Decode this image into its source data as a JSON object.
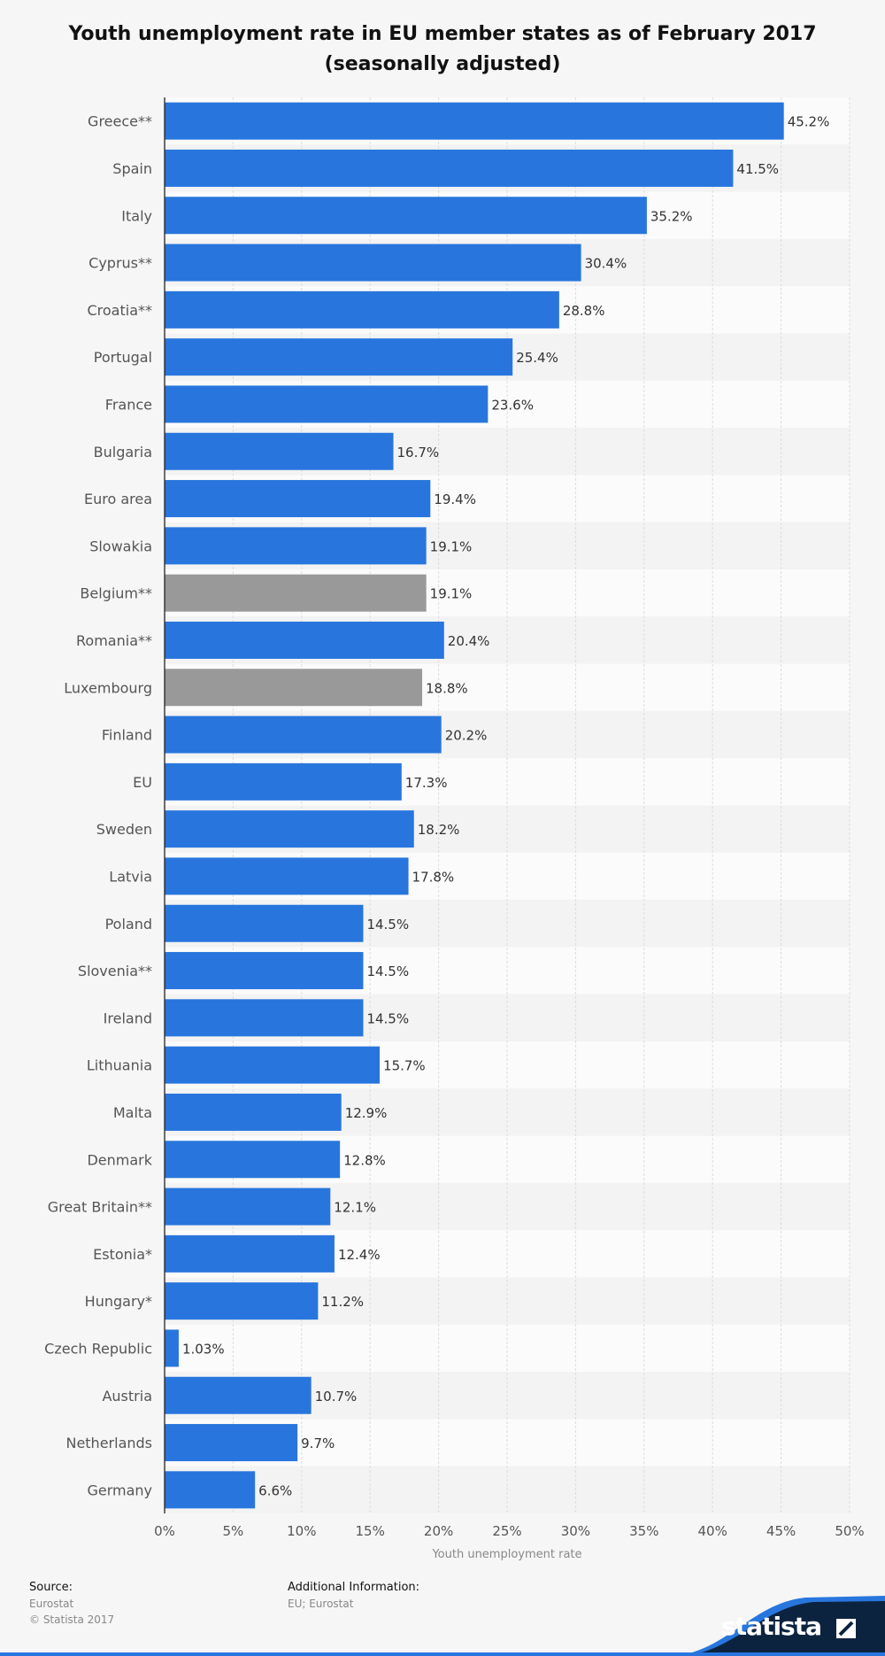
{
  "title": {
    "line1": "Youth unemployment rate in EU member states as of February 2017",
    "line2": "(seasonally adjusted)"
  },
  "colors": {
    "bar_primary": "#2876dd",
    "bar_highlight": "#999999",
    "band_light": "#fbfbfb",
    "band_dark": "#f3f3f3"
  },
  "chart_data": {
    "type": "bar",
    "orientation": "horizontal",
    "categories": [
      "Greece**",
      "Spain",
      "Italy",
      "Cyprus**",
      "Croatia**",
      "Portugal",
      "France",
      "Bulgaria",
      "Euro area",
      "Slowakia",
      "Belgium**",
      "Romania**",
      "Luxembourg",
      "Finland",
      "EU",
      "Sweden",
      "Latvia",
      "Poland",
      "Slovenia**",
      "Ireland",
      "Lithuania",
      "Malta",
      "Denmark",
      "Great Britain**",
      "Estonia*",
      "Hungary*",
      "Czech Republic",
      "Austria",
      "Netherlands",
      "Germany"
    ],
    "values": [
      45.2,
      41.5,
      35.2,
      30.4,
      28.8,
      25.4,
      23.6,
      16.7,
      19.4,
      19.1,
      19.1,
      20.4,
      18.8,
      20.2,
      17.3,
      18.2,
      17.8,
      14.5,
      14.5,
      14.5,
      15.7,
      12.9,
      12.8,
      12.1,
      12.4,
      11.2,
      1.03,
      10.7,
      9.7,
      6.6
    ],
    "value_labels": [
      "45.2%",
      "41.5%",
      "35.2%",
      "30.4%",
      "28.8%",
      "25.4%",
      "23.6%",
      "16.7%",
      "19.4%",
      "19.1%",
      "19.1%",
      "20.4%",
      "18.8%",
      "20.2%",
      "17.3%",
      "18.2%",
      "17.8%",
      "14.5%",
      "14.5%",
      "14.5%",
      "15.7%",
      "12.9%",
      "12.8%",
      "12.1%",
      "12.4%",
      "11.2%",
      "1.03%",
      "10.7%",
      "9.7%",
      "6.6%"
    ],
    "highlighted": [
      "Belgium**",
      "Luxembourg"
    ],
    "xlabel": "Youth unemployment rate",
    "xlim": [
      0,
      50
    ],
    "xticks": [
      0,
      5,
      10,
      15,
      20,
      25,
      30,
      35,
      40,
      45,
      50
    ],
    "xtick_labels": [
      "0%",
      "5%",
      "10%",
      "15%",
      "20%",
      "25%",
      "30%",
      "35%",
      "40%",
      "45%",
      "50%"
    ],
    "grid": true
  },
  "footer": {
    "source_heading": "Source:",
    "source_lines": [
      "Eurostat",
      "© Statista 2017"
    ],
    "info_heading": "Additional Information:",
    "info_text": "EU; Eurostat"
  },
  "brand": {
    "name": "statista"
  }
}
